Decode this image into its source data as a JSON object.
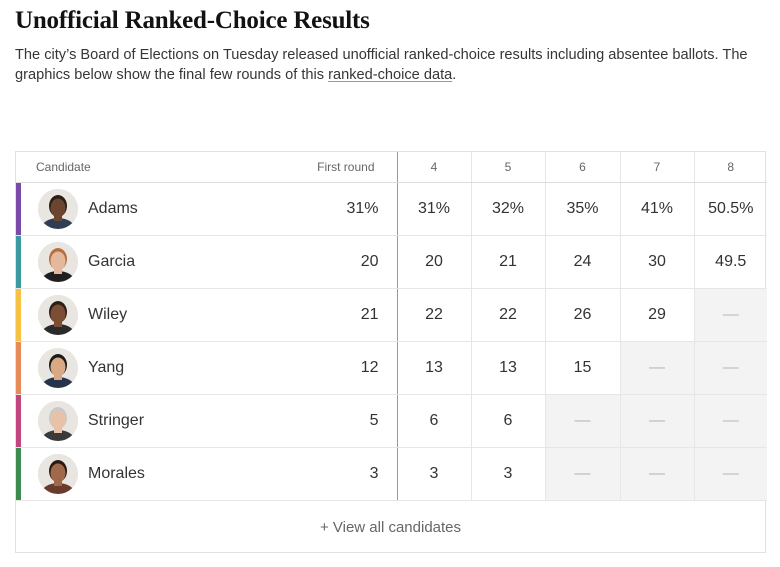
{
  "header": {
    "title": "Unofficial Ranked-Choice Results",
    "subtitle_before_link": "The city’s Board of Elections on Tuesday released unofficial ranked-choice results including absentee ballots. The graphics below show the final few rounds of this ",
    "link_text": "ranked-choice data",
    "subtitle_after_link": "."
  },
  "table": {
    "headers": {
      "candidate": "Candidate",
      "first_round": "First round",
      "rounds": [
        "4",
        "5",
        "6",
        "7",
        "8"
      ]
    },
    "rows": [
      {
        "name": "Adams",
        "color": "#7a4aa8",
        "first": "31%",
        "rounds": [
          "31%",
          "32%",
          "35%",
          "41%",
          "50.5%"
        ],
        "skin": "#6b4530",
        "hair": "#2a1d16",
        "shirt": "#2f3d55"
      },
      {
        "name": "Garcia",
        "color": "#3a9aa0",
        "first": "20",
        "rounds": [
          "20",
          "21",
          "24",
          "30",
          "49.5"
        ],
        "skin": "#e3b89c",
        "hair": "#b56e3c",
        "shirt": "#1f1f1f"
      },
      {
        "name": "Wiley",
        "color": "#f5c244",
        "first": "21",
        "rounds": [
          "22",
          "22",
          "26",
          "29",
          "—"
        ],
        "skin": "#7c4e34",
        "hair": "#2c1f18",
        "shirt": "#2b2b2b"
      },
      {
        "name": "Yang",
        "color": "#e88a5a",
        "first": "12",
        "rounds": [
          "13",
          "13",
          "15",
          "—",
          "—"
        ],
        "skin": "#d9a984",
        "hair": "#1a1a1a",
        "shirt": "#26334d"
      },
      {
        "name": "Stringer",
        "color": "#c2457e",
        "first": "5",
        "rounds": [
          "6",
          "6",
          "—",
          "—",
          "—"
        ],
        "skin": "#e8c2a8",
        "hair": "#c9c9c9",
        "shirt": "#3a3a3a"
      },
      {
        "name": "Morales",
        "color": "#3d8b4f",
        "first": "3",
        "rounds": [
          "3",
          "3",
          "—",
          "—",
          "—"
        ],
        "skin": "#a0694a",
        "hair": "#2a1a14",
        "shirt": "#6a3b2c"
      }
    ],
    "eliminated_round_counts": [
      0,
      0,
      1,
      2,
      3,
      3
    ]
  },
  "footer": {
    "view_all_label": "+ View all candidates"
  }
}
